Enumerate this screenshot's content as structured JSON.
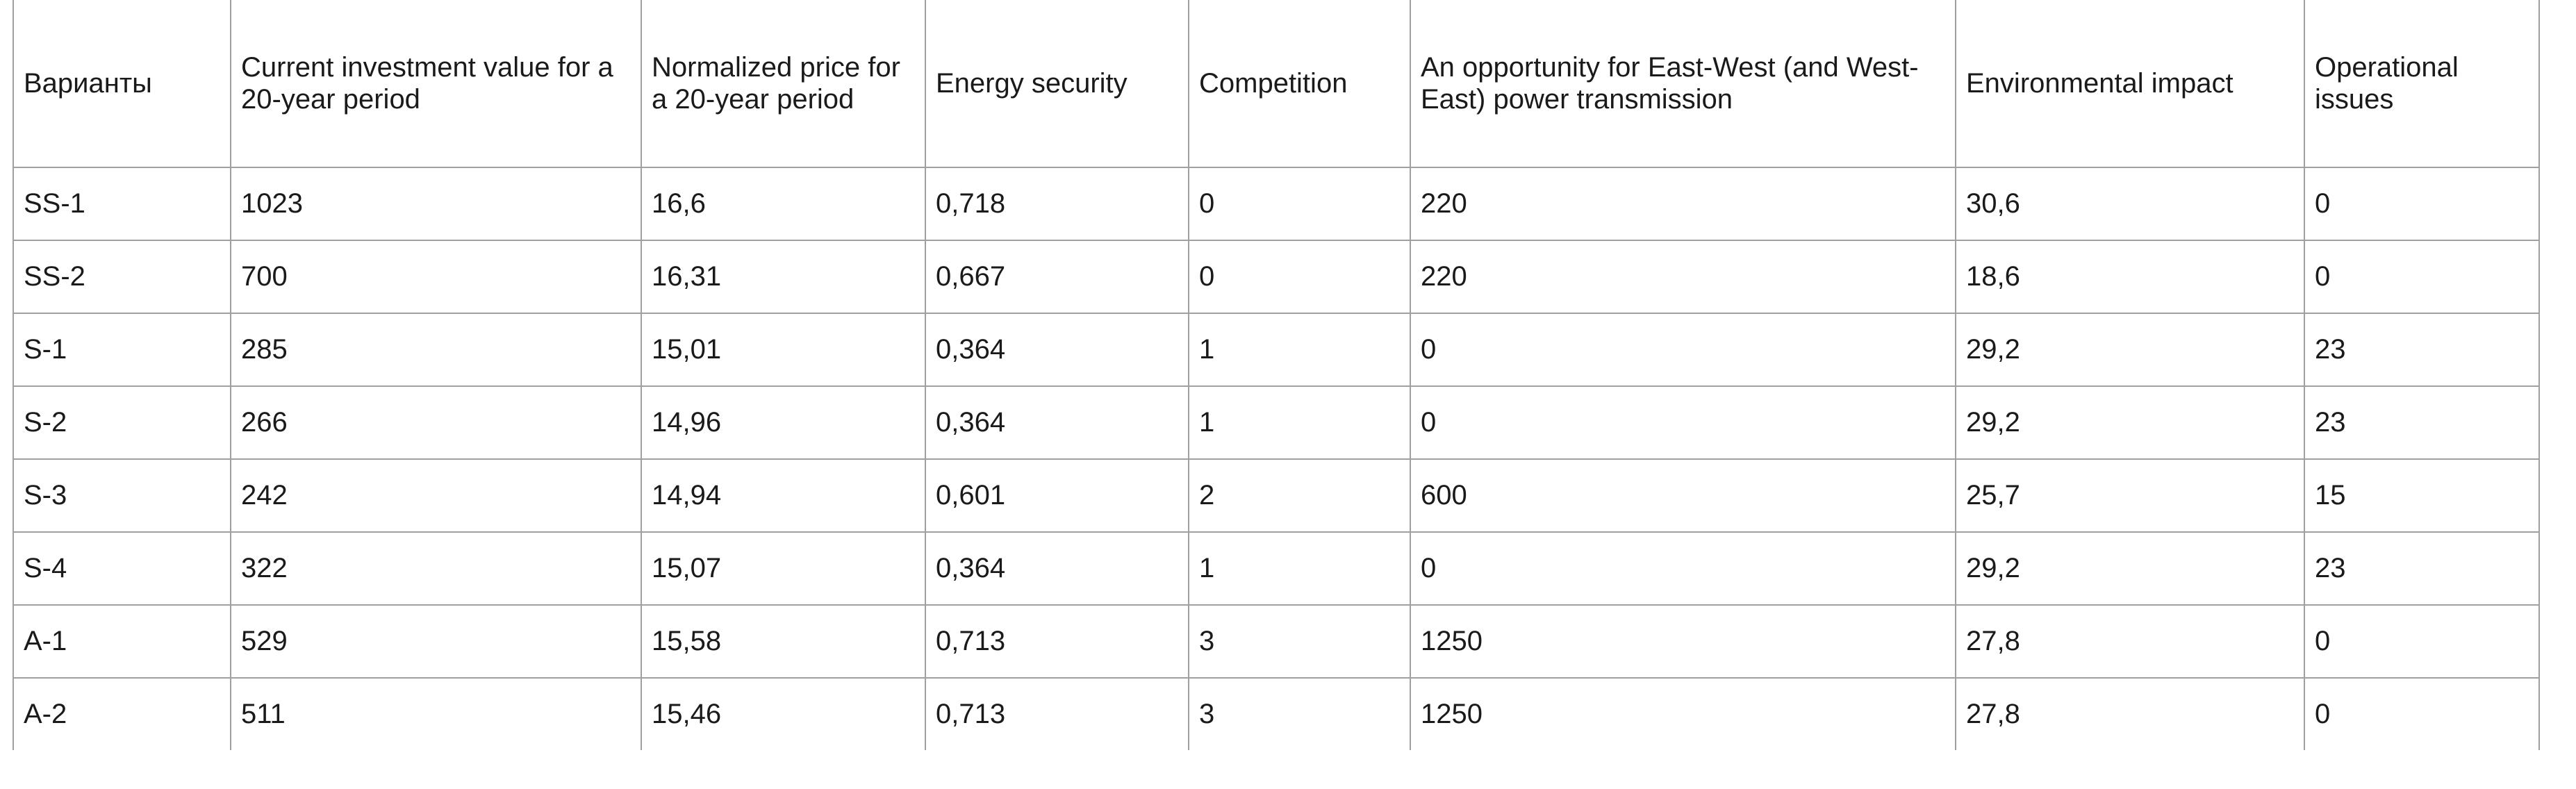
{
  "table": {
    "header": [
      "Варианты",
      "Current investment value for a 20-year period",
      "Normalized price for a 20-year period",
      "Energy security",
      "Competition",
      "An opportunity for East-West (and West-East) power transmission",
      "Environmental impact",
      "Operational issues"
    ],
    "rows": [
      [
        "SS-1",
        "1023",
        "16,6",
        "0,718",
        "0",
        "220",
        "30,6",
        "0"
      ],
      [
        "SS-2",
        "700",
        "16,31",
        "0,667",
        "0",
        "220",
        "18,6",
        "0"
      ],
      [
        "S-1",
        "285",
        "15,01",
        "0,364",
        "1",
        "0",
        "29,2",
        "23"
      ],
      [
        "S-2",
        "266",
        "14,96",
        "0,364",
        "1",
        "0",
        "29,2",
        "23"
      ],
      [
        "S-3",
        "242",
        "14,94",
        "0,601",
        "2",
        "600",
        "25,7",
        "15"
      ],
      [
        "S-4",
        "322",
        "15,07",
        "0,364",
        "1",
        "0",
        "29,2",
        "23"
      ],
      [
        "A-1",
        "529",
        "15,58",
        "0,713",
        "3",
        "1250",
        "27,8",
        "0"
      ],
      [
        "A-2",
        "511",
        "15,46",
        "0,713",
        "3",
        "1250",
        "27,8",
        "0"
      ]
    ]
  }
}
